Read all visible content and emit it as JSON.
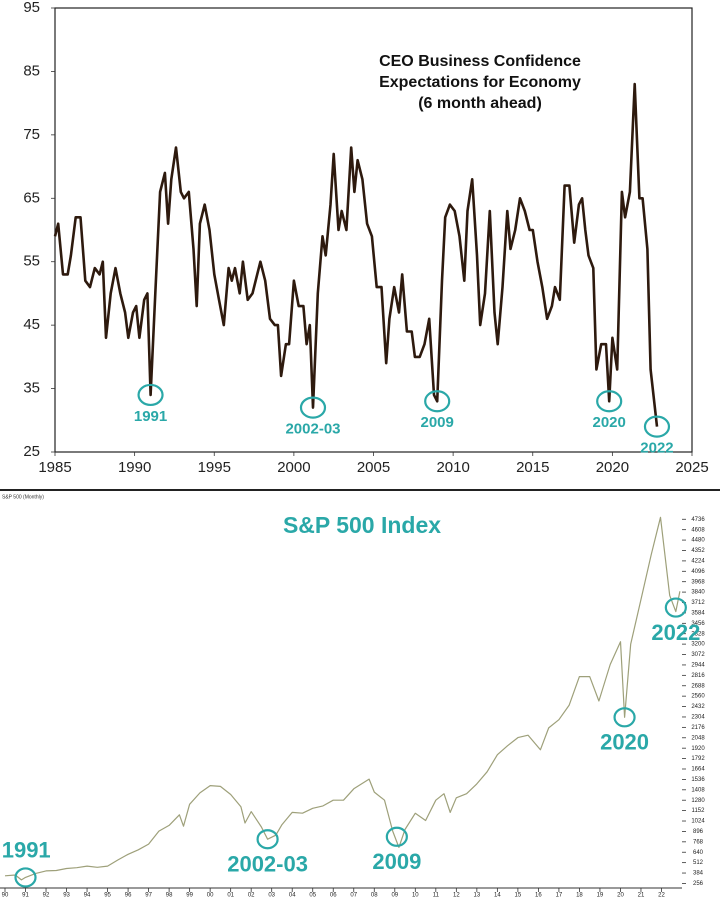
{
  "chart_data": [
    {
      "type": "line",
      "title": [
        "CEO Business Confidence",
        "Expectations for Economy",
        "(6 month ahead)"
      ],
      "color": "#2e1a0e",
      "x": [
        1985.0,
        1985.2,
        1985.5,
        1985.8,
        1986.0,
        1986.3,
        1986.6,
        1986.9,
        1987.2,
        1987.5,
        1987.8,
        1988.0,
        1988.2,
        1988.5,
        1988.8,
        1989.1,
        1989.4,
        1989.6,
        1989.9,
        1990.1,
        1990.3,
        1990.6,
        1990.8,
        1991.0,
        1991.3,
        1991.6,
        1991.9,
        1992.1,
        1992.3,
        1992.6,
        1992.9,
        1993.1,
        1993.4,
        1993.7,
        1993.9,
        1994.1,
        1994.4,
        1994.7,
        1995.0,
        1995.3,
        1995.6,
        1995.9,
        1996.1,
        1996.3,
        1996.6,
        1996.8,
        1997.1,
        1997.4,
        1997.7,
        1997.9,
        1998.2,
        1998.5,
        1998.8,
        1999.0,
        1999.2,
        1999.5,
        1999.7,
        2000.0,
        2000.3,
        2000.6,
        2000.8,
        2001.0,
        2001.2,
        2001.5,
        2001.8,
        2002.0,
        2002.3,
        2002.5,
        2002.8,
        2003.0,
        2003.3,
        2003.6,
        2003.8,
        2004.0,
        2004.3,
        2004.6,
        2004.9,
        2005.2,
        2005.5,
        2005.8,
        2006.0,
        2006.3,
        2006.6,
        2006.8,
        2007.1,
        2007.4,
        2007.6,
        2007.9,
        2008.2,
        2008.5,
        2008.8,
        2009.0,
        2009.3,
        2009.5,
        2009.8,
        2010.1,
        2010.4,
        2010.7,
        2010.9,
        2011.2,
        2011.5,
        2011.7,
        2012.0,
        2012.3,
        2012.6,
        2012.8,
        2013.1,
        2013.4,
        2013.6,
        2013.9,
        2014.2,
        2014.5,
        2014.8,
        2015.0,
        2015.3,
        2015.6,
        2015.9,
        2016.2,
        2016.4,
        2016.7,
        2017.0,
        2017.3,
        2017.6,
        2017.9,
        2018.1,
        2018.3,
        2018.5,
        2018.8,
        2019.0,
        2019.3,
        2019.6,
        2019.8,
        2020.0,
        2020.3,
        2020.6,
        2020.8,
        2021.1,
        2021.4,
        2021.7,
        2021.9,
        2022.2,
        2022.4,
        2022.8
      ],
      "values": [
        59,
        61,
        53,
        53,
        56,
        62,
        62,
        52,
        51,
        54,
        53,
        55,
        43,
        50,
        54,
        50,
        47,
        43,
        47,
        48,
        43,
        49,
        50,
        34,
        50,
        66,
        69,
        61,
        68,
        73,
        66,
        65,
        66,
        57,
        48,
        61,
        64,
        60,
        53,
        49,
        45,
        54,
        52,
        54,
        50,
        55,
        49,
        50,
        53,
        55,
        52,
        46,
        45,
        45,
        37,
        42,
        42,
        52,
        48,
        48,
        42,
        45,
        32,
        50,
        59,
        56,
        64,
        72,
        60,
        63,
        60,
        73,
        66,
        71,
        68,
        61,
        59,
        51,
        51,
        39,
        46,
        51,
        47,
        53,
        44,
        44,
        40,
        40,
        42,
        46,
        34,
        33,
        52,
        62,
        64,
        63,
        59,
        52,
        63,
        68,
        56,
        45,
        50,
        63,
        47,
        42,
        51,
        63,
        57,
        60,
        65,
        63,
        60,
        60,
        55,
        51,
        46,
        48,
        51,
        49,
        67,
        67,
        58,
        64,
        65,
        60,
        56,
        54,
        38,
        42,
        42,
        33,
        43,
        38,
        66,
        62,
        66,
        83,
        65,
        65,
        57,
        38,
        29
      ],
      "xlim": [
        1985,
        2025
      ],
      "xticks": [
        1985,
        1990,
        1995,
        2000,
        2005,
        2010,
        2015,
        2020,
        2025
      ],
      "ylim": [
        25,
        95
      ],
      "yticks": [
        25,
        35,
        45,
        55,
        65,
        75,
        85,
        95
      ],
      "annotation_color": "#2aa8a8",
      "annotations": [
        {
          "text": "1991",
          "x": 1991.0,
          "y": 34,
          "position": "below"
        },
        {
          "text": "2002-03",
          "x": 2001.2,
          "y": 32,
          "position": "below"
        },
        {
          "text": "2009",
          "x": 2009.0,
          "y": 33,
          "position": "below"
        },
        {
          "text": "2020",
          "x": 2019.8,
          "y": 33,
          "position": "below"
        },
        {
          "text": "2022",
          "x": 2022.8,
          "y": 29,
          "position": "below"
        }
      ]
    },
    {
      "type": "line",
      "title": "S&P 500 Index",
      "subtitle": "S&P 500 (Monthly)",
      "color": "#9ea07a",
      "x": [
        1990.0,
        1990.5,
        1990.8,
        1991.0,
        1991.5,
        1992.0,
        1992.5,
        1993.0,
        1993.5,
        1994.0,
        1994.5,
        1995.0,
        1995.5,
        1996.0,
        1996.5,
        1997.0,
        1997.5,
        1998.0,
        1998.5,
        1998.7,
        1999.0,
        1999.5,
        2000.0,
        2000.5,
        2001.0,
        2001.5,
        2001.7,
        2002.0,
        2002.5,
        2002.8,
        2003.2,
        2003.5,
        2004.0,
        2004.5,
        2005.0,
        2005.5,
        2006.0,
        2006.5,
        2007.0,
        2007.75,
        2008.0,
        2008.5,
        2008.9,
        2009.2,
        2009.5,
        2010.0,
        2010.5,
        2011.0,
        2011.4,
        2011.7,
        2012.0,
        2012.5,
        2013.0,
        2013.5,
        2014.0,
        2014.5,
        2015.0,
        2015.5,
        2016.1,
        2016.5,
        2017.0,
        2017.5,
        2018.0,
        2018.5,
        2018.95,
        2019.5,
        2020.0,
        2020.2,
        2020.5,
        2021.0,
        2021.5,
        2021.95,
        2022.4,
        2022.7,
        2022.9
      ],
      "values": [
        350,
        360,
        300,
        330,
        380,
        410,
        415,
        440,
        450,
        470,
        455,
        470,
        545,
        615,
        670,
        740,
        900,
        970,
        1100,
        960,
        1230,
        1370,
        1460,
        1450,
        1350,
        1200,
        1000,
        1140,
        950,
        800,
        850,
        980,
        1130,
        1120,
        1180,
        1210,
        1280,
        1280,
        1420,
        1540,
        1380,
        1280,
        900,
        700,
        920,
        1120,
        1030,
        1280,
        1360,
        1130,
        1310,
        1360,
        1480,
        1630,
        1840,
        1950,
        2050,
        2080,
        1900,
        2170,
        2270,
        2450,
        2800,
        2800,
        2500,
        2950,
        3230,
        2300,
        3200,
        3750,
        4300,
        4760,
        3800,
        3600,
        3850
      ],
      "xlim": [
        1990,
        2023
      ],
      "xticks": [
        {
          "value": 1990,
          "label": "90"
        },
        {
          "value": 1991,
          "label": "91"
        },
        {
          "value": 1992,
          "label": "92"
        },
        {
          "value": 1993,
          "label": "93"
        },
        {
          "value": 1994,
          "label": "94"
        },
        {
          "value": 1995,
          "label": "95"
        },
        {
          "value": 1996,
          "label": "96"
        },
        {
          "value": 1997,
          "label": "97"
        },
        {
          "value": 1998,
          "label": "98"
        },
        {
          "value": 1999,
          "label": "99"
        },
        {
          "value": 2000,
          "label": "00"
        },
        {
          "value": 2001,
          "label": "01"
        },
        {
          "value": 2002,
          "label": "02"
        },
        {
          "value": 2003,
          "label": "03"
        },
        {
          "value": 2004,
          "label": "04"
        },
        {
          "value": 2005,
          "label": "05"
        },
        {
          "value": 2006,
          "label": "06"
        },
        {
          "value": 2007,
          "label": "07"
        },
        {
          "value": 2008,
          "label": "08"
        },
        {
          "value": 2009,
          "label": "09"
        },
        {
          "value": 2010,
          "label": "10"
        },
        {
          "value": 2011,
          "label": "11"
        },
        {
          "value": 2012,
          "label": "12"
        },
        {
          "value": 2013,
          "label": "13"
        },
        {
          "value": 2014,
          "label": "14"
        },
        {
          "value": 2015,
          "label": "15"
        },
        {
          "value": 2016,
          "label": "16"
        },
        {
          "value": 2017,
          "label": "17"
        },
        {
          "value": 2018,
          "label": "18"
        },
        {
          "value": 2019,
          "label": "19"
        },
        {
          "value": 2020,
          "label": "20"
        },
        {
          "value": 2021,
          "label": "21"
        },
        {
          "value": 2022,
          "label": "22"
        }
      ],
      "ylim": [
        200,
        4850
      ],
      "yticks": [
        256,
        384,
        512,
        640,
        768,
        896,
        1024,
        1152,
        1280,
        1408,
        1536,
        1664,
        1792,
        1920,
        2048,
        2176,
        2304,
        2432,
        2560,
        2688,
        2816,
        2944,
        3072,
        3200,
        3328,
        3456,
        3584,
        3712,
        3840,
        3968,
        4096,
        4224,
        4352,
        4480,
        4608,
        4736
      ],
      "annotation_color": "#2aa8a8",
      "annotations": [
        {
          "text": "1991",
          "x": 1991.0,
          "y": 330,
          "position": "above"
        },
        {
          "text": "2002-03",
          "x": 2002.8,
          "y": 800,
          "position": "below"
        },
        {
          "text": "2009",
          "x": 2009.1,
          "y": 830,
          "position": "below"
        },
        {
          "text": "2020",
          "x": 2020.2,
          "y": 2300,
          "position": "below"
        },
        {
          "text": "2022",
          "x": 2022.7,
          "y": 3650,
          "position": "below"
        }
      ]
    }
  ]
}
